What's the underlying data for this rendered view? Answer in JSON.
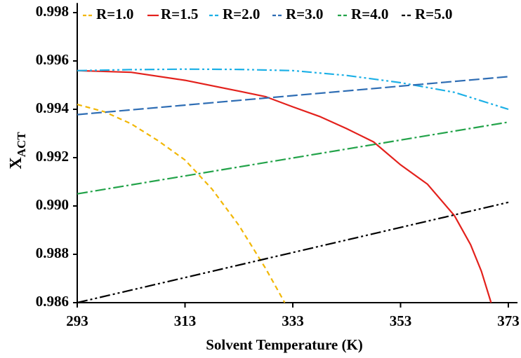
{
  "chart_data": {
    "type": "line",
    "xlabel": "Solvent Temperature (K)",
    "ylabel": {
      "main": "X",
      "sub": "ACT"
    },
    "xlim": [
      293,
      374.7
    ],
    "xticks": [
      293,
      313,
      333,
      353,
      373
    ],
    "ylim": [
      0.986,
      0.9984
    ],
    "yticks": [
      0.986,
      0.988,
      {
        "value": 0.99,
        "label": "0.990"
      },
      0.992,
      0.994,
      0.996,
      0.998
    ],
    "legend": "top",
    "series": [
      {
        "name": "R=1.0",
        "color": "#f2b705",
        "x": [
          293,
          298,
          303,
          308,
          313,
          318,
          323,
          328,
          331.5
        ],
        "values": [
          0.9942,
          0.9939,
          0.9934,
          0.9927,
          0.9919,
          0.9907,
          0.9892,
          0.9874,
          0.986
        ]
      },
      {
        "name": "R=1.5",
        "color": "#e3211c",
        "x": [
          293,
          303,
          313,
          323,
          328,
          333,
          338,
          343,
          348,
          353,
          358,
          363,
          366,
          368,
          369.8
        ],
        "values": [
          0.9956,
          0.99553,
          0.9952,
          0.99475,
          0.99452,
          0.9941,
          0.9937,
          0.9932,
          0.99265,
          0.9917,
          0.9909,
          0.9896,
          0.9884,
          0.9873,
          0.986
        ]
      },
      {
        "name": "R=2.0",
        "color": "#1cb0e6",
        "x": [
          293,
          303,
          313,
          323,
          333,
          343,
          353,
          363,
          373
        ],
        "values": [
          0.9956,
          0.99564,
          0.99566,
          0.99565,
          0.9956,
          0.9954,
          0.9951,
          0.9947,
          0.994
        ]
      },
      {
        "name": "R=3.0",
        "color": "#2e6db4",
        "x": [
          293,
          373
        ],
        "values": [
          0.99378,
          0.99535
        ]
      },
      {
        "name": "R=4.0",
        "color": "#23a34a",
        "x": [
          293,
          373
        ],
        "values": [
          0.9905,
          0.99347
        ]
      },
      {
        "name": "R=5.0",
        "color": "#000000",
        "x": [
          293,
          373
        ],
        "values": [
          0.986,
          0.99015
        ]
      }
    ]
  }
}
